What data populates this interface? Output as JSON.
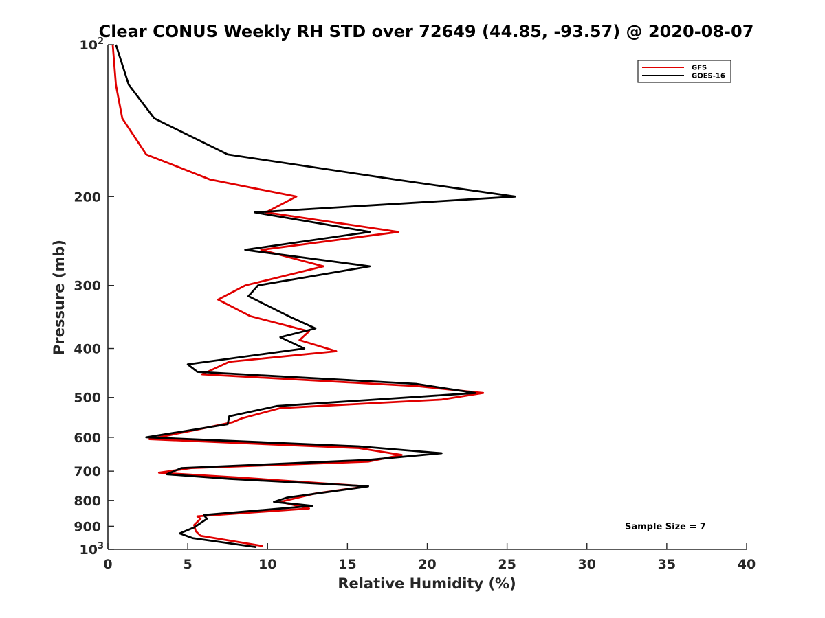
{
  "chart_data": {
    "type": "line",
    "title": "Clear CONUS Weekly RH STD over 72649 (44.85, -93.57) @ 2020-08-07",
    "xlabel": "Relative Humidity (%)",
    "ylabel": "Pressure (mb)",
    "xlim": [
      0,
      40
    ],
    "ylim": [
      100,
      1000
    ],
    "y_scale": "log",
    "y_reversed": true,
    "xticks": [
      "0",
      "5",
      "10",
      "15",
      "20",
      "25",
      "30",
      "35",
      "40"
    ],
    "yticks": [
      {
        "value": 100,
        "label": "10",
        "sup": "2"
      },
      {
        "value": 200,
        "label": "200",
        "sup": ""
      },
      {
        "value": 300,
        "label": "300",
        "sup": ""
      },
      {
        "value": 400,
        "label": "400",
        "sup": ""
      },
      {
        "value": 500,
        "label": "500",
        "sup": ""
      },
      {
        "value": 600,
        "label": "600",
        "sup": ""
      },
      {
        "value": 700,
        "label": "700",
        "sup": ""
      },
      {
        "value": 800,
        "label": "800",
        "sup": ""
      },
      {
        "value": 900,
        "label": "900",
        "sup": ""
      },
      {
        "value": 1000,
        "label": "10",
        "sup": "3"
      }
    ],
    "grid": false,
    "legend_position": "top-right",
    "annotation": "Sample Size = 7",
    "series": [
      {
        "name": "GFS",
        "color": "#e00000",
        "points": [
          [
            0.3,
            100
          ],
          [
            0.5,
            120
          ],
          [
            0.9,
            140
          ],
          [
            2.4,
            165
          ],
          [
            6.4,
            185
          ],
          [
            11.8,
            200
          ],
          [
            9.9,
            215
          ],
          [
            18.2,
            235
          ],
          [
            9.6,
            255
          ],
          [
            13.5,
            275
          ],
          [
            8.6,
            300
          ],
          [
            6.9,
            320
          ],
          [
            8.9,
            345
          ],
          [
            12.6,
            370
          ],
          [
            12.0,
            385
          ],
          [
            14.3,
            405
          ],
          [
            7.6,
            425
          ],
          [
            5.9,
            450
          ],
          [
            19.4,
            475
          ],
          [
            23.5,
            490
          ],
          [
            20.9,
            505
          ],
          [
            10.8,
            525
          ],
          [
            8.4,
            550
          ],
          [
            7.8,
            560
          ],
          [
            5.5,
            580
          ],
          [
            2.6,
            605
          ],
          [
            15.7,
            630
          ],
          [
            18.4,
            650
          ],
          [
            16.3,
            670
          ],
          [
            5.2,
            690
          ],
          [
            3.2,
            705
          ],
          [
            8.0,
            720
          ],
          [
            16.2,
            750
          ],
          [
            13.0,
            775
          ],
          [
            10.8,
            805
          ],
          [
            11.5,
            815
          ],
          [
            12.6,
            830
          ],
          [
            5.6,
            860
          ],
          [
            5.8,
            870
          ],
          [
            5.4,
            895
          ],
          [
            5.5,
            920
          ],
          [
            5.8,
            940
          ],
          [
            9.7,
            985
          ]
        ]
      },
      {
        "name": "GOES-16",
        "color": "#000000",
        "points": [
          [
            0.5,
            100
          ],
          [
            1.3,
            120
          ],
          [
            2.9,
            140
          ],
          [
            7.5,
            165
          ],
          [
            18.0,
            185
          ],
          [
            25.5,
            200
          ],
          [
            9.2,
            215
          ],
          [
            16.4,
            235
          ],
          [
            8.6,
            255
          ],
          [
            16.4,
            275
          ],
          [
            9.4,
            300
          ],
          [
            8.8,
            315
          ],
          [
            11.3,
            345
          ],
          [
            13.0,
            365
          ],
          [
            10.8,
            380
          ],
          [
            12.3,
            400
          ],
          [
            5.0,
            430
          ],
          [
            5.6,
            445
          ],
          [
            19.3,
            470
          ],
          [
            23.0,
            490
          ],
          [
            10.6,
            520
          ],
          [
            7.6,
            545
          ],
          [
            7.5,
            565
          ],
          [
            2.4,
            600
          ],
          [
            15.7,
            625
          ],
          [
            20.9,
            645
          ],
          [
            16.3,
            665
          ],
          [
            4.6,
            690
          ],
          [
            3.7,
            710
          ],
          [
            7.6,
            725
          ],
          [
            16.3,
            750
          ],
          [
            11.2,
            790
          ],
          [
            10.4,
            805
          ],
          [
            12.8,
            820
          ],
          [
            6.0,
            855
          ],
          [
            6.2,
            870
          ],
          [
            5.4,
            905
          ],
          [
            4.5,
            930
          ],
          [
            5.3,
            950
          ],
          [
            9.3,
            990
          ]
        ]
      }
    ]
  }
}
